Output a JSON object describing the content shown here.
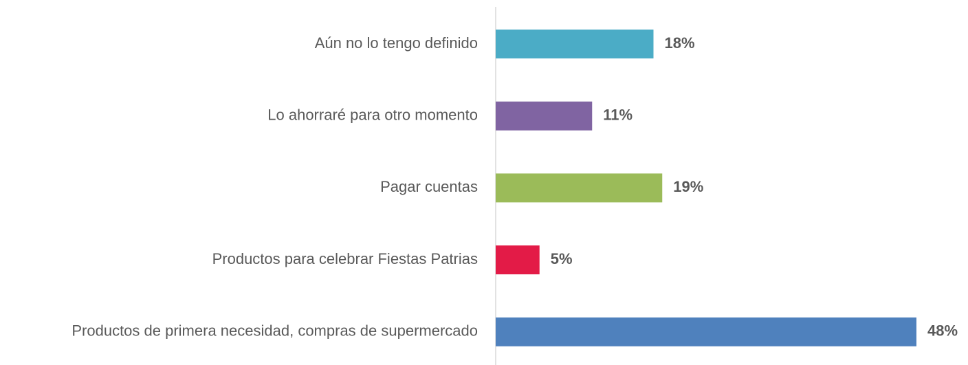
{
  "chart_data": {
    "type": "hbar",
    "categories": [
      "Aún no lo tengo definido",
      "Lo ahorraré para otro momento",
      "Pagar cuentas",
      "Productos para celebrar Fiestas Patrias",
      "Productos de primera necesidad, compras de supermercado"
    ],
    "values": [
      18,
      11,
      19,
      5,
      48
    ],
    "value_labels": [
      "18%",
      "11%",
      "19%",
      "5%",
      "48%"
    ],
    "colors": [
      "#4bacc6",
      "#8064a2",
      "#9bbb59",
      "#e31b47",
      "#4f81bd"
    ]
  }
}
